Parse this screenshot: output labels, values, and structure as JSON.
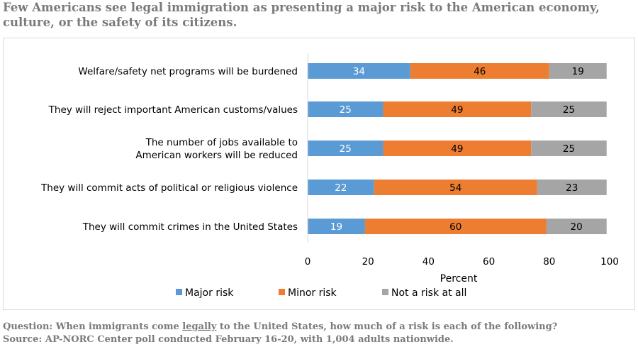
{
  "title": "Few Americans see legal immigration as presenting a major risk to the American economy, culture, or the safety of its citizens.",
  "footnote": {
    "question_prefix": "Question: When immigrants come ",
    "question_emphasis": "legally",
    "question_suffix": " to the United States, how much of a risk is each of the following?",
    "source": "Source: AP-NORC Center poll conducted February 16-20, with 1,004 adults nationwide."
  },
  "chart_data": {
    "type": "bar",
    "orientation": "horizontal",
    "stacked": true,
    "categories": [
      [
        "Welfare/safety net programs will be burdened"
      ],
      [
        "They will reject important American customs/values"
      ],
      [
        "The number of jobs available to",
        "American workers will be reduced"
      ],
      [
        "They will commit acts of political or religious violence"
      ],
      [
        "They will commit crimes in the United States"
      ]
    ],
    "series": [
      {
        "name": "Major risk",
        "color": "#5b9bd5",
        "label_color": "#ffffff",
        "values": [
          34,
          25,
          25,
          22,
          19
        ]
      },
      {
        "name": "Minor risk",
        "color": "#ed7d31",
        "label_color": "#000000",
        "values": [
          46,
          49,
          49,
          54,
          60
        ]
      },
      {
        "name": "Not a risk at all",
        "color": "#a5a5a5",
        "label_color": "#000000",
        "values": [
          19,
          25,
          25,
          23,
          20
        ]
      }
    ],
    "xlabel": "Percent",
    "ylabel": "",
    "xlim": [
      0,
      100
    ],
    "xticks": [
      0,
      20,
      40,
      60,
      80,
      100
    ],
    "grid": false,
    "legend_position": "bottom"
  }
}
